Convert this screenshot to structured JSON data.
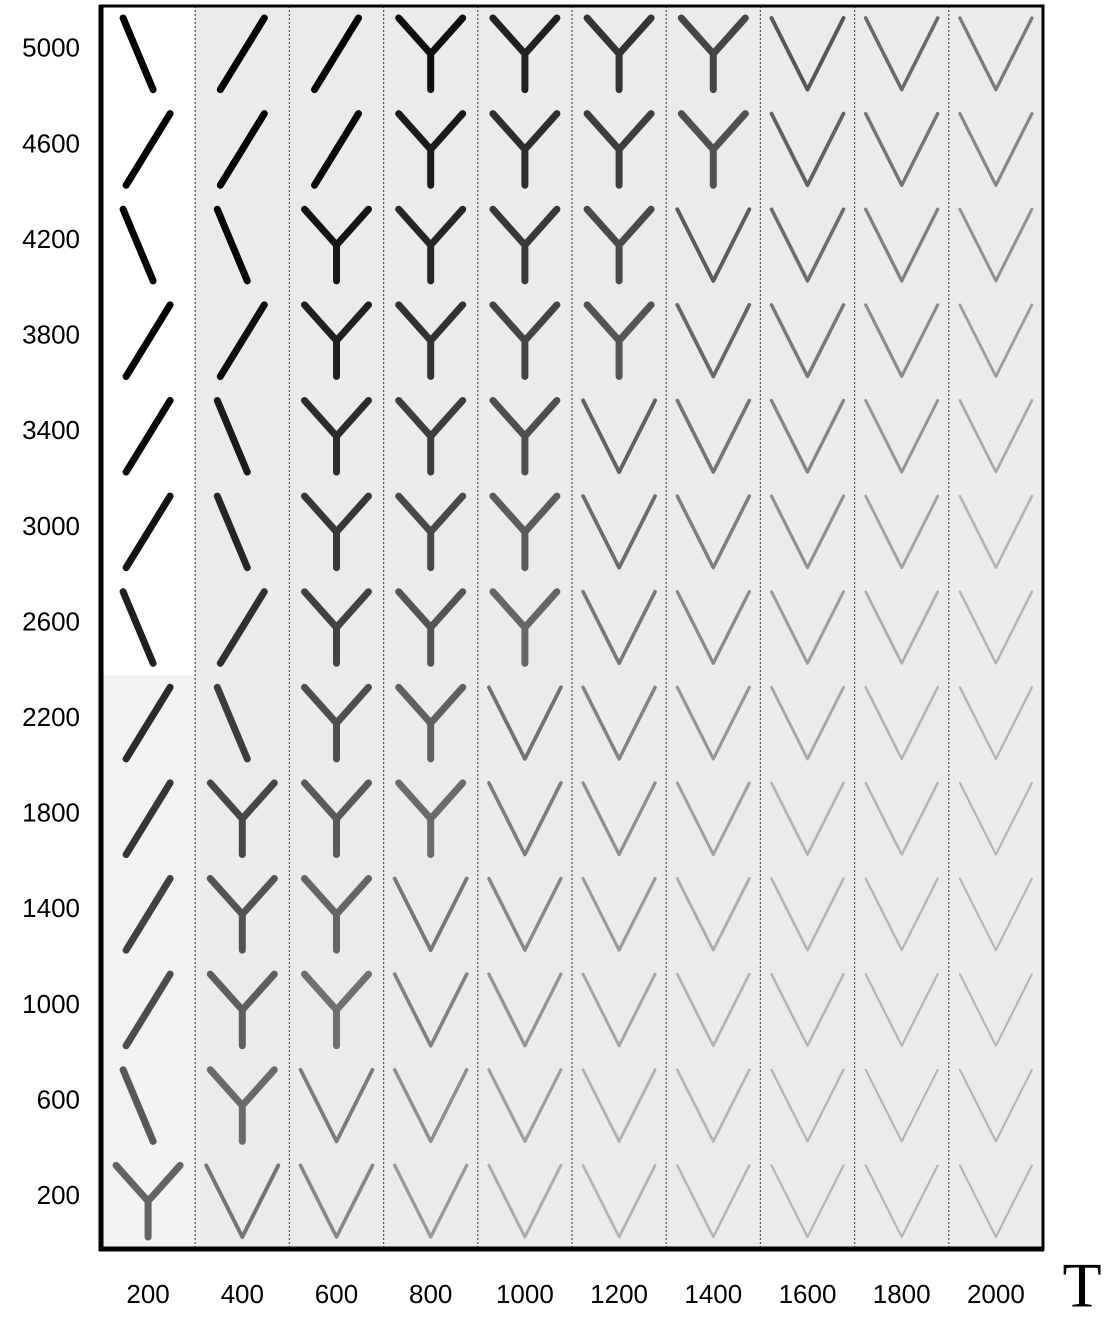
{
  "row_labels": [
    5000,
    4600,
    4200,
    3800,
    3400,
    3000,
    2600,
    2200,
    1800,
    1400,
    1000,
    600,
    200
  ],
  "column_labels": [
    200,
    400,
    600,
    800,
    1000,
    1200,
    1400,
    1600,
    1800,
    2000
  ],
  "axis_label": "T"
}
